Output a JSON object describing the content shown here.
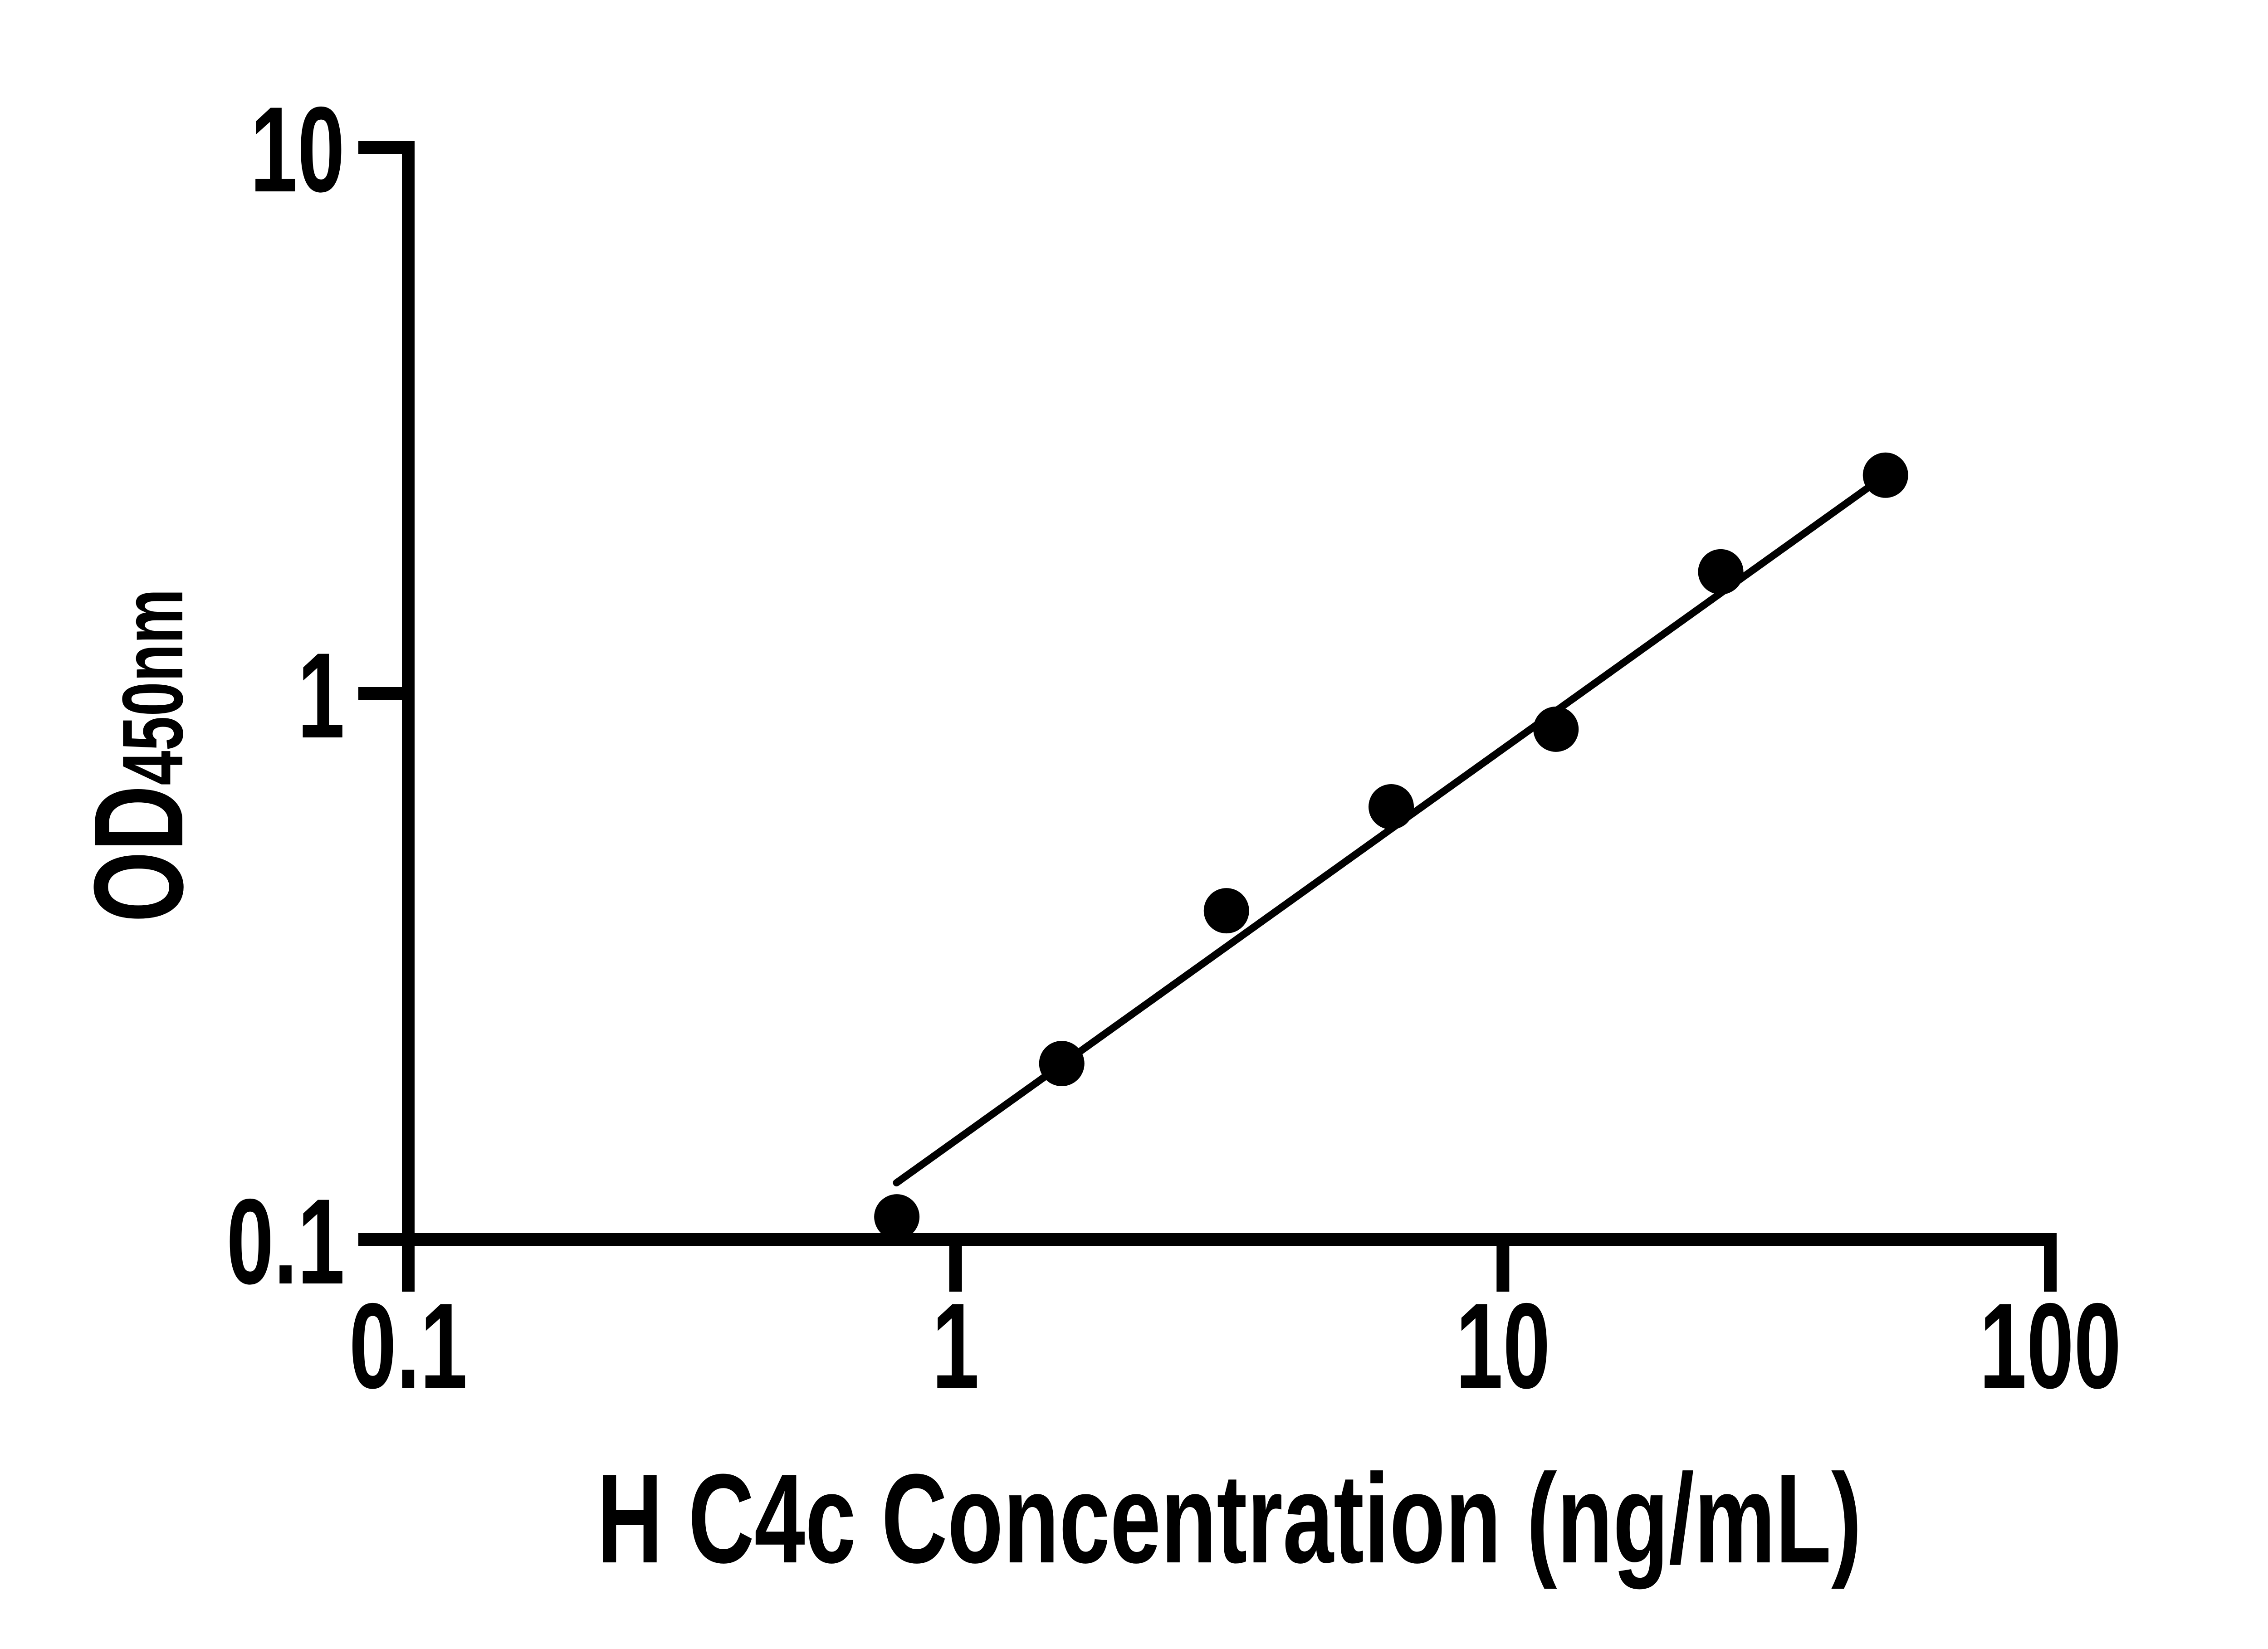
{
  "figure": {
    "background_color": "#ffffff",
    "ink_color": "#000000"
  },
  "chart_data": {
    "type": "scatter",
    "title": "",
    "xlabel": "H C4c Concentration (ng/mL)",
    "ylabel_main": "OD",
    "ylabel_subscript": "450nm",
    "x_scale": "log",
    "y_scale": "log",
    "xlim": [
      0.1,
      100
    ],
    "ylim": [
      0.1,
      10
    ],
    "grid": false,
    "legend": null,
    "marker": "filled-circle",
    "x_ticks": [
      {
        "value": 0.1,
        "label": "0.1"
      },
      {
        "value": 1,
        "label": "1"
      },
      {
        "value": 10,
        "label": "10"
      },
      {
        "value": 100,
        "label": "100"
      }
    ],
    "y_ticks": [
      {
        "value": 0.1,
        "label": "0.1"
      },
      {
        "value": 1,
        "label": "1"
      },
      {
        "value": 10,
        "label": "10"
      }
    ],
    "points": [
      {
        "x": 0.781,
        "y": 0.11
      },
      {
        "x": 1.563,
        "y": 0.21
      },
      {
        "x": 3.125,
        "y": 0.4
      },
      {
        "x": 6.25,
        "y": 0.62
      },
      {
        "x": 12.5,
        "y": 0.86
      },
      {
        "x": 25,
        "y": 1.67
      },
      {
        "x": 50,
        "y": 2.51
      }
    ],
    "fit_line": {
      "x1": 0.78,
      "y1": 0.127,
      "x2": 50,
      "y2": 2.51
    }
  }
}
